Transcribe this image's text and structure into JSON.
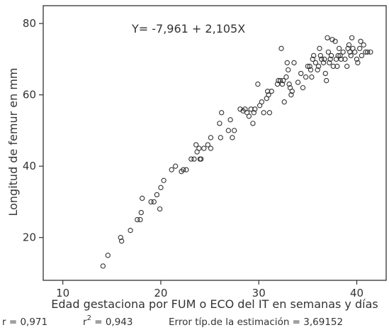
{
  "chart_data": {
    "type": "scatter",
    "title": "",
    "xlabel": "Edad gestaciona por FUM o ECO del IT en semanas y días",
    "ylabel": "Longitud de femur en mm",
    "xlim": [
      8,
      43
    ],
    "ylim": [
      8,
      85
    ],
    "xticks": [
      "10",
      "20",
      "30",
      "40"
    ],
    "yticks": [
      "20",
      "40",
      "60",
      "80"
    ],
    "grid": false,
    "equation": "Y= -7,961 + 2,105X",
    "stats": {
      "r": "r = 0,971",
      "r2_prefix": "r",
      "r2_sup": "2",
      "r2_value": " = 0,943",
      "error": "Error típ.de la estimación = 3,69152"
    },
    "marker_color": "#333333",
    "points": [
      [
        14.1,
        12
      ],
      [
        14.6,
        15
      ],
      [
        15.9,
        20
      ],
      [
        16,
        19
      ],
      [
        16.9,
        22
      ],
      [
        17.6,
        25
      ],
      [
        17.9,
        25
      ],
      [
        18,
        27
      ],
      [
        18.1,
        31
      ],
      [
        19,
        30
      ],
      [
        19.3,
        30
      ],
      [
        19.6,
        32
      ],
      [
        19.9,
        28
      ],
      [
        20,
        34
      ],
      [
        20.3,
        36
      ],
      [
        21.1,
        39
      ],
      [
        21.5,
        40
      ],
      [
        22.1,
        38.5
      ],
      [
        22.3,
        39
      ],
      [
        22.6,
        39
      ],
      [
        23.1,
        42
      ],
      [
        23.4,
        42
      ],
      [
        23.6,
        46
      ],
      [
        23.7,
        44
      ],
      [
        23.9,
        45
      ],
      [
        24,
        42
      ],
      [
        24.1,
        42
      ],
      [
        24.4,
        45
      ],
      [
        24.8,
        46
      ],
      [
        25.1,
        48
      ],
      [
        25.1,
        45
      ],
      [
        26,
        52
      ],
      [
        26.2,
        55
      ],
      [
        26.1,
        48
      ],
      [
        26.9,
        50
      ],
      [
        27.1,
        53
      ],
      [
        27.3,
        48
      ],
      [
        27.5,
        50
      ],
      [
        28.1,
        56
      ],
      [
        28.4,
        55.5
      ],
      [
        28.6,
        56
      ],
      [
        28.8,
        55
      ],
      [
        29,
        54
      ],
      [
        29.2,
        56
      ],
      [
        29.4,
        52
      ],
      [
        29.5,
        55
      ],
      [
        29.6,
        56
      ],
      [
        29.9,
        63
      ],
      [
        30.1,
        57
      ],
      [
        30.3,
        58
      ],
      [
        30.5,
        55
      ],
      [
        30.8,
        59
      ],
      [
        30.9,
        61
      ],
      [
        31,
        60
      ],
      [
        31.1,
        55
      ],
      [
        31.3,
        61
      ],
      [
        31.9,
        63
      ],
      [
        32,
        64
      ],
      [
        32.2,
        64
      ],
      [
        32.3,
        73
      ],
      [
        32.4,
        63
      ],
      [
        32.5,
        64
      ],
      [
        32.6,
        58
      ],
      [
        32.8,
        65
      ],
      [
        32.9,
        69
      ],
      [
        33,
        67
      ],
      [
        33.1,
        63
      ],
      [
        33.2,
        62
      ],
      [
        33.3,
        60
      ],
      [
        33.4,
        61
      ],
      [
        33.6,
        69
      ],
      [
        34,
        63.5
      ],
      [
        34.3,
        66
      ],
      [
        34.5,
        62
      ],
      [
        34.8,
        65
      ],
      [
        35,
        68
      ],
      [
        35.2,
        68
      ],
      [
        35.3,
        67
      ],
      [
        35.4,
        65
      ],
      [
        35.5,
        70
      ],
      [
        35.6,
        71
      ],
      [
        35.8,
        69
      ],
      [
        36,
        67
      ],
      [
        36.1,
        68
      ],
      [
        36.2,
        73
      ],
      [
        36.3,
        71
      ],
      [
        36.4,
        70
      ],
      [
        36.6,
        69
      ],
      [
        36.8,
        66
      ],
      [
        36.9,
        64
      ],
      [
        37,
        76
      ],
      [
        37.1,
        72
      ],
      [
        37.3,
        70
      ],
      [
        37.4,
        71
      ],
      [
        37.5,
        75.5
      ],
      [
        37.6,
        68
      ],
      [
        37.8,
        75
      ],
      [
        37.9,
        70
      ],
      [
        38,
        68
      ],
      [
        38.1,
        71
      ],
      [
        38.2,
        73
      ],
      [
        38.4,
        70
      ],
      [
        38.6,
        72
      ],
      [
        38.8,
        70
      ],
      [
        39,
        68
      ],
      [
        39.1,
        73
      ],
      [
        39.2,
        74
      ],
      [
        39.4,
        71
      ],
      [
        39.5,
        76
      ],
      [
        39.6,
        73
      ],
      [
        39.8,
        72
      ],
      [
        40,
        70
      ],
      [
        40.1,
        69
      ],
      [
        40.3,
        73
      ],
      [
        40.4,
        75
      ],
      [
        40.5,
        71
      ],
      [
        40.7,
        74
      ],
      [
        40.9,
        72
      ],
      [
        41.1,
        72
      ],
      [
        41.4,
        72
      ],
      [
        37.2,
        69
      ],
      [
        38.3,
        71
      ],
      [
        39.3,
        72
      ],
      [
        36.7,
        70
      ]
    ]
  }
}
